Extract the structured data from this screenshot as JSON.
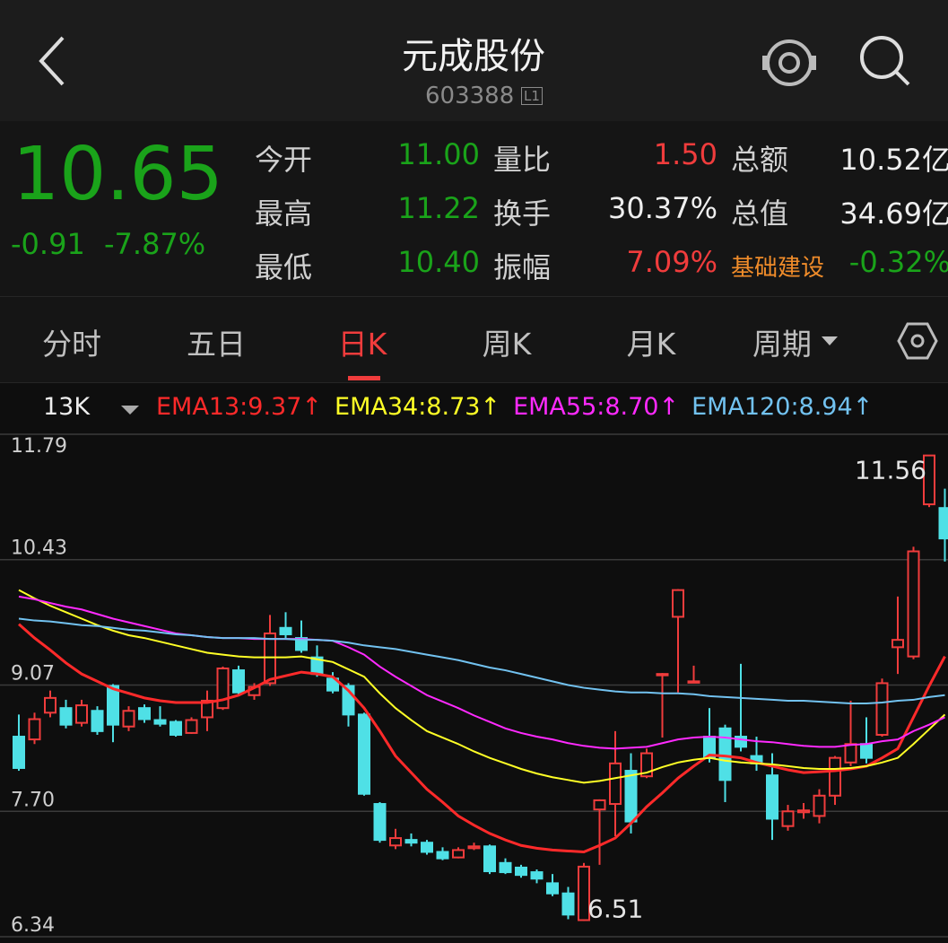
{
  "header": {
    "title": "元成股份",
    "code": "603388",
    "badge": "L1"
  },
  "quote": {
    "price": "10.65",
    "change": "-0.91",
    "change_pct": "-7.87%",
    "rows": [
      [
        [
          "今开",
          "11.00"
        ],
        [
          "量比",
          "1.50"
        ],
        [
          "总额",
          "10.52亿"
        ]
      ],
      [
        [
          "最高",
          "11.22"
        ],
        [
          "换手",
          "30.37%"
        ],
        [
          "总值",
          "34.69亿"
        ]
      ],
      [
        [
          "最低",
          "10.40"
        ],
        [
          "振幅",
          "7.09%"
        ],
        [
          "基础建设",
          "-0.32%"
        ]
      ]
    ]
  },
  "tabs": [
    "分时",
    "五日",
    "日K",
    "周K",
    "月K",
    "周期"
  ],
  "indicator": {
    "period": "13K"
  },
  "chart_data": {
    "type": "candlestick",
    "open": [
      8.51,
      8.48,
      8.77,
      8.82,
      8.66,
      8.79,
      9.06,
      8.62,
      8.82,
      8.69,
      8.67,
      8.55,
      8.72,
      8.82,
      9.23,
      8.96,
      9.09,
      9.69,
      9.58,
      9.37,
      9.14,
      9.06,
      8.75,
      7.78,
      7.33,
      7.39,
      7.36,
      7.26,
      7.2,
      7.3,
      7.32,
      7.14,
      7.09,
      7.04,
      6.92,
      6.81,
      6.52,
      7.72,
      7.78,
      8.14,
      8.08,
      9.19,
      9.81,
      9.11,
      8.51,
      8.6,
      8.51,
      8.3,
      8.09,
      7.54,
      7.69,
      7.65,
      7.87,
      8.23,
      8.43,
      8.53,
      9.48,
      9.38,
      11.03,
      10.99
    ],
    "high": [
      8.75,
      8.77,
      9.01,
      8.91,
      8.91,
      8.84,
      9.08,
      8.84,
      8.86,
      8.84,
      8.69,
      8.72,
      9.01,
      9.27,
      9.28,
      9.09,
      9.83,
      9.86,
      9.77,
      9.5,
      9.21,
      9.09,
      8.77,
      7.8,
      7.51,
      7.46,
      7.39,
      7.31,
      7.31,
      7.36,
      7.34,
      7.19,
      7.12,
      7.07,
      7.02,
      6.88,
      7.14,
      7.83,
      8.57,
      8.33,
      8.38,
      9.2,
      10.11,
      9.28,
      8.82,
      8.64,
      9.3,
      8.51,
      8.33,
      7.77,
      7.79,
      7.94,
      8.3,
      8.9,
      8.72,
      9.14,
      10.03,
      10.57,
      11.56,
      11.2
    ],
    "low": [
      8.14,
      8.43,
      8.72,
      8.6,
      8.62,
      8.53,
      8.45,
      8.57,
      8.66,
      8.62,
      8.51,
      8.54,
      8.57,
      8.8,
      8.96,
      8.91,
      9.06,
      9.58,
      9.42,
      9.16,
      8.98,
      8.62,
      7.87,
      7.36,
      7.29,
      7.32,
      7.23,
      7.17,
      7.19,
      7.28,
      7.02,
      7.02,
      6.98,
      6.92,
      6.78,
      6.53,
      6.51,
      7.12,
      7.43,
      7.46,
      8.06,
      8.5,
      8.99,
      9.11,
      8.23,
      7.8,
      8.35,
      8.14,
      7.39,
      7.49,
      7.62,
      7.57,
      7.77,
      8.19,
      8.22,
      8.51,
      9.19,
      9.35,
      11.0,
      10.41
    ],
    "close": [
      8.17,
      8.7,
      8.93,
      8.64,
      8.85,
      8.57,
      8.64,
      8.79,
      8.7,
      8.65,
      8.53,
      8.69,
      8.9,
      9.25,
      8.99,
      9.05,
      9.63,
      9.62,
      9.45,
      9.19,
      9.01,
      8.75,
      7.89,
      7.39,
      7.41,
      7.36,
      7.26,
      7.19,
      7.28,
      7.32,
      7.05,
      7.04,
      7.01,
      6.97,
      6.81,
      6.58,
      7.1,
      7.82,
      8.22,
      7.59,
      8.33,
      9.19,
      10.1,
      9.11,
      8.28,
      8.04,
      8.4,
      8.22,
      7.62,
      7.7,
      7.71,
      7.87,
      8.28,
      8.43,
      8.28,
      9.09,
      9.56,
      10.52,
      11.56,
      10.66
    ],
    "up_color": "#f03c3c",
    "down_color": "#4fe0e6",
    "series": [
      {
        "name": "EMA13:9.37↑",
        "color": "#ff2a2a",
        "values": [
          9.73,
          9.58,
          9.45,
          9.31,
          9.19,
          9.11,
          9.03,
          8.98,
          8.93,
          8.9,
          8.88,
          8.88,
          8.88,
          8.91,
          8.96,
          9.04,
          9.13,
          9.17,
          9.21,
          9.19,
          9.16,
          9.01,
          8.82,
          8.57,
          8.3,
          8.12,
          7.94,
          7.8,
          7.65,
          7.55,
          7.46,
          7.39,
          7.33,
          7.3,
          7.28,
          7.27,
          7.26,
          7.33,
          7.41,
          7.57,
          7.75,
          7.9,
          8.06,
          8.19,
          8.31,
          8.3,
          8.28,
          8.23,
          8.19,
          8.15,
          8.12,
          8.13,
          8.14,
          8.16,
          8.19,
          8.28,
          8.38,
          8.72,
          9.06,
          9.38
        ]
      },
      {
        "name": "EMA34:8.73↑",
        "color": "#ffff26",
        "values": [
          10.1,
          10.01,
          9.93,
          9.86,
          9.79,
          9.72,
          9.66,
          9.61,
          9.58,
          9.54,
          9.5,
          9.46,
          9.42,
          9.4,
          9.38,
          9.37,
          9.37,
          9.37,
          9.38,
          9.35,
          9.32,
          9.24,
          9.16,
          8.98,
          8.82,
          8.69,
          8.57,
          8.5,
          8.43,
          8.35,
          8.28,
          8.22,
          8.16,
          8.11,
          8.07,
          8.04,
          8.01,
          8.03,
          8.06,
          8.09,
          8.12,
          8.18,
          8.23,
          8.26,
          8.28,
          8.25,
          8.23,
          8.22,
          8.21,
          8.19,
          8.17,
          8.16,
          8.16,
          8.17,
          8.19,
          8.23,
          8.28,
          8.43,
          8.59,
          8.75
        ]
      },
      {
        "name": "EMA55:8.70↑",
        "color": "#ff2aff",
        "values": [
          10.03,
          10.0,
          9.96,
          9.92,
          9.89,
          9.84,
          9.79,
          9.75,
          9.71,
          9.67,
          9.63,
          9.61,
          9.59,
          9.58,
          9.58,
          9.57,
          9.57,
          9.57,
          9.57,
          9.56,
          9.55,
          9.48,
          9.4,
          9.27,
          9.16,
          9.06,
          8.96,
          8.89,
          8.82,
          8.74,
          8.67,
          8.6,
          8.55,
          8.51,
          8.48,
          8.44,
          8.41,
          8.39,
          8.38,
          8.39,
          8.4,
          8.44,
          8.48,
          8.5,
          8.51,
          8.5,
          8.48,
          8.46,
          8.45,
          8.43,
          8.41,
          8.4,
          8.4,
          8.42,
          8.43,
          8.46,
          8.48,
          8.57,
          8.64,
          8.72
        ]
      },
      {
        "name": "EMA120:8.94↑",
        "color": "#72c2f0",
        "values": [
          9.79,
          9.77,
          9.76,
          9.74,
          9.72,
          9.71,
          9.69,
          9.67,
          9.66,
          9.64,
          9.62,
          9.61,
          9.59,
          9.58,
          9.58,
          9.58,
          9.57,
          9.57,
          9.56,
          9.56,
          9.55,
          9.53,
          9.5,
          9.48,
          9.46,
          9.43,
          9.4,
          9.37,
          9.34,
          9.3,
          9.26,
          9.23,
          9.19,
          9.15,
          9.11,
          9.07,
          9.04,
          9.02,
          9.0,
          8.99,
          8.99,
          8.98,
          8.98,
          8.97,
          8.95,
          8.94,
          8.93,
          8.92,
          8.91,
          8.9,
          8.9,
          8.89,
          8.88,
          8.87,
          8.87,
          8.88,
          8.9,
          8.91,
          8.94,
          8.96
        ]
      }
    ],
    "annotations": [
      {
        "value": 11.56,
        "label": "11.56",
        "at": "high"
      },
      {
        "value": 6.51,
        "label": "6.51",
        "at": "low"
      }
    ],
    "ylim": [
      6.34,
      11.79
    ],
    "yticks": [
      11.79,
      10.43,
      9.07,
      {
        "value": 7.7,
        "label": "7.70"
      },
      6.34
    ],
    "grid": true
  }
}
